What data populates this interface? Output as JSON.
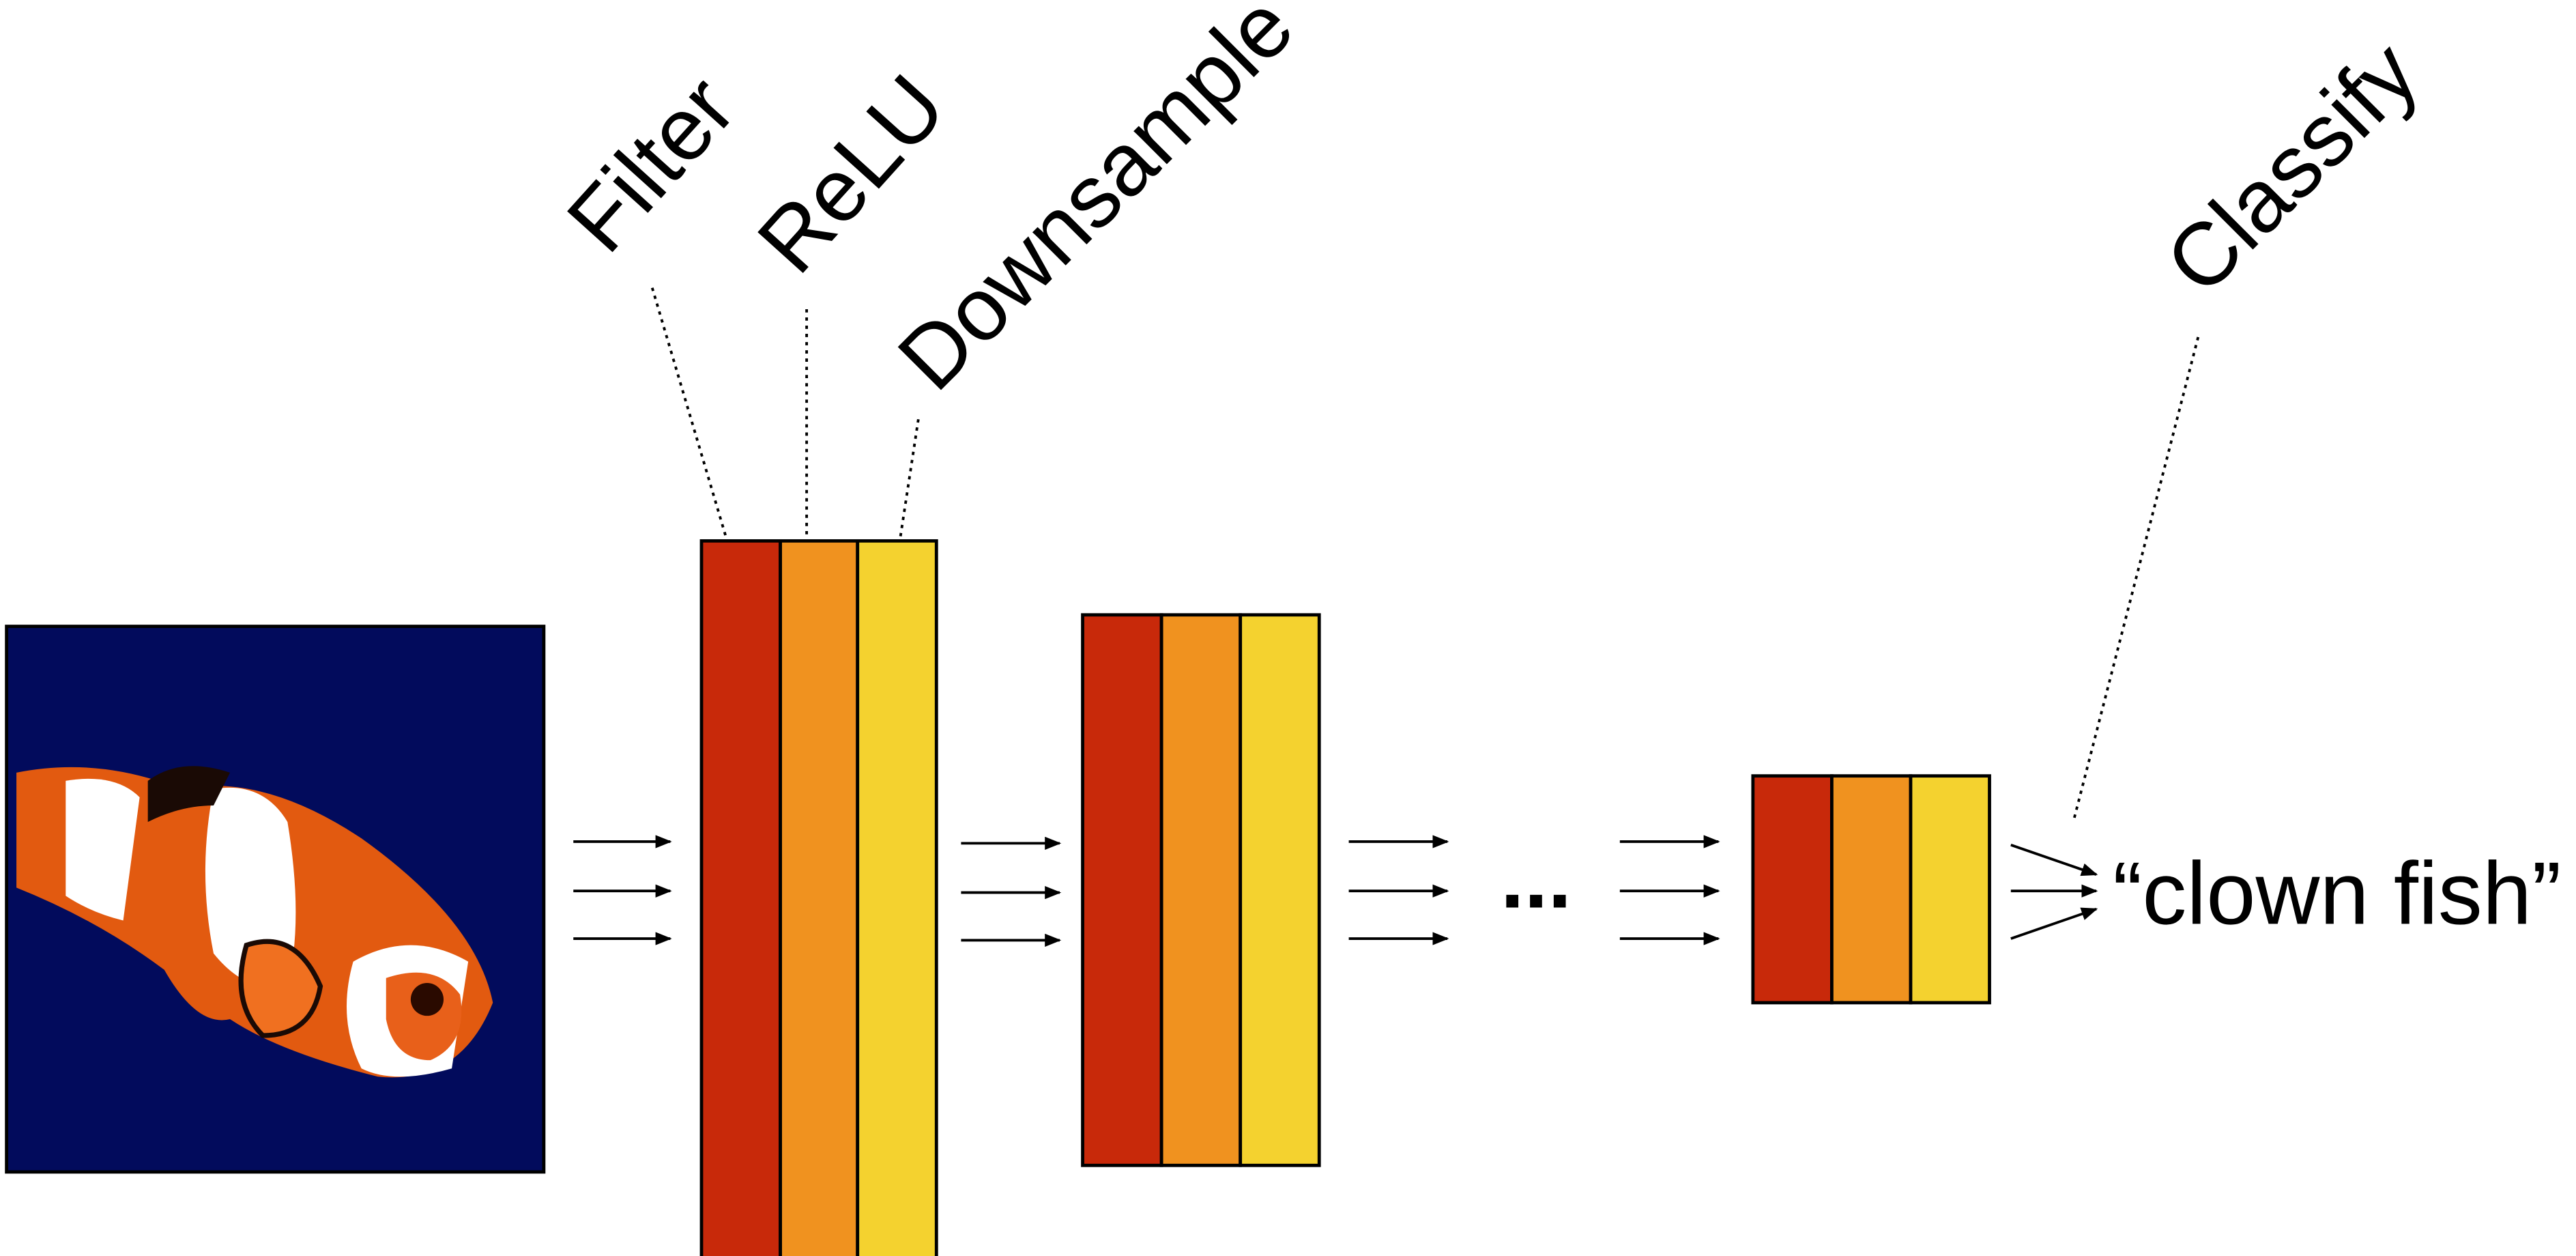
{
  "labels": {
    "filter": "Filter",
    "relu": "ReLU",
    "downsample": "Downsample",
    "classify": "Classify"
  },
  "ellipsis": "...",
  "output": "“clown fish”"
}
